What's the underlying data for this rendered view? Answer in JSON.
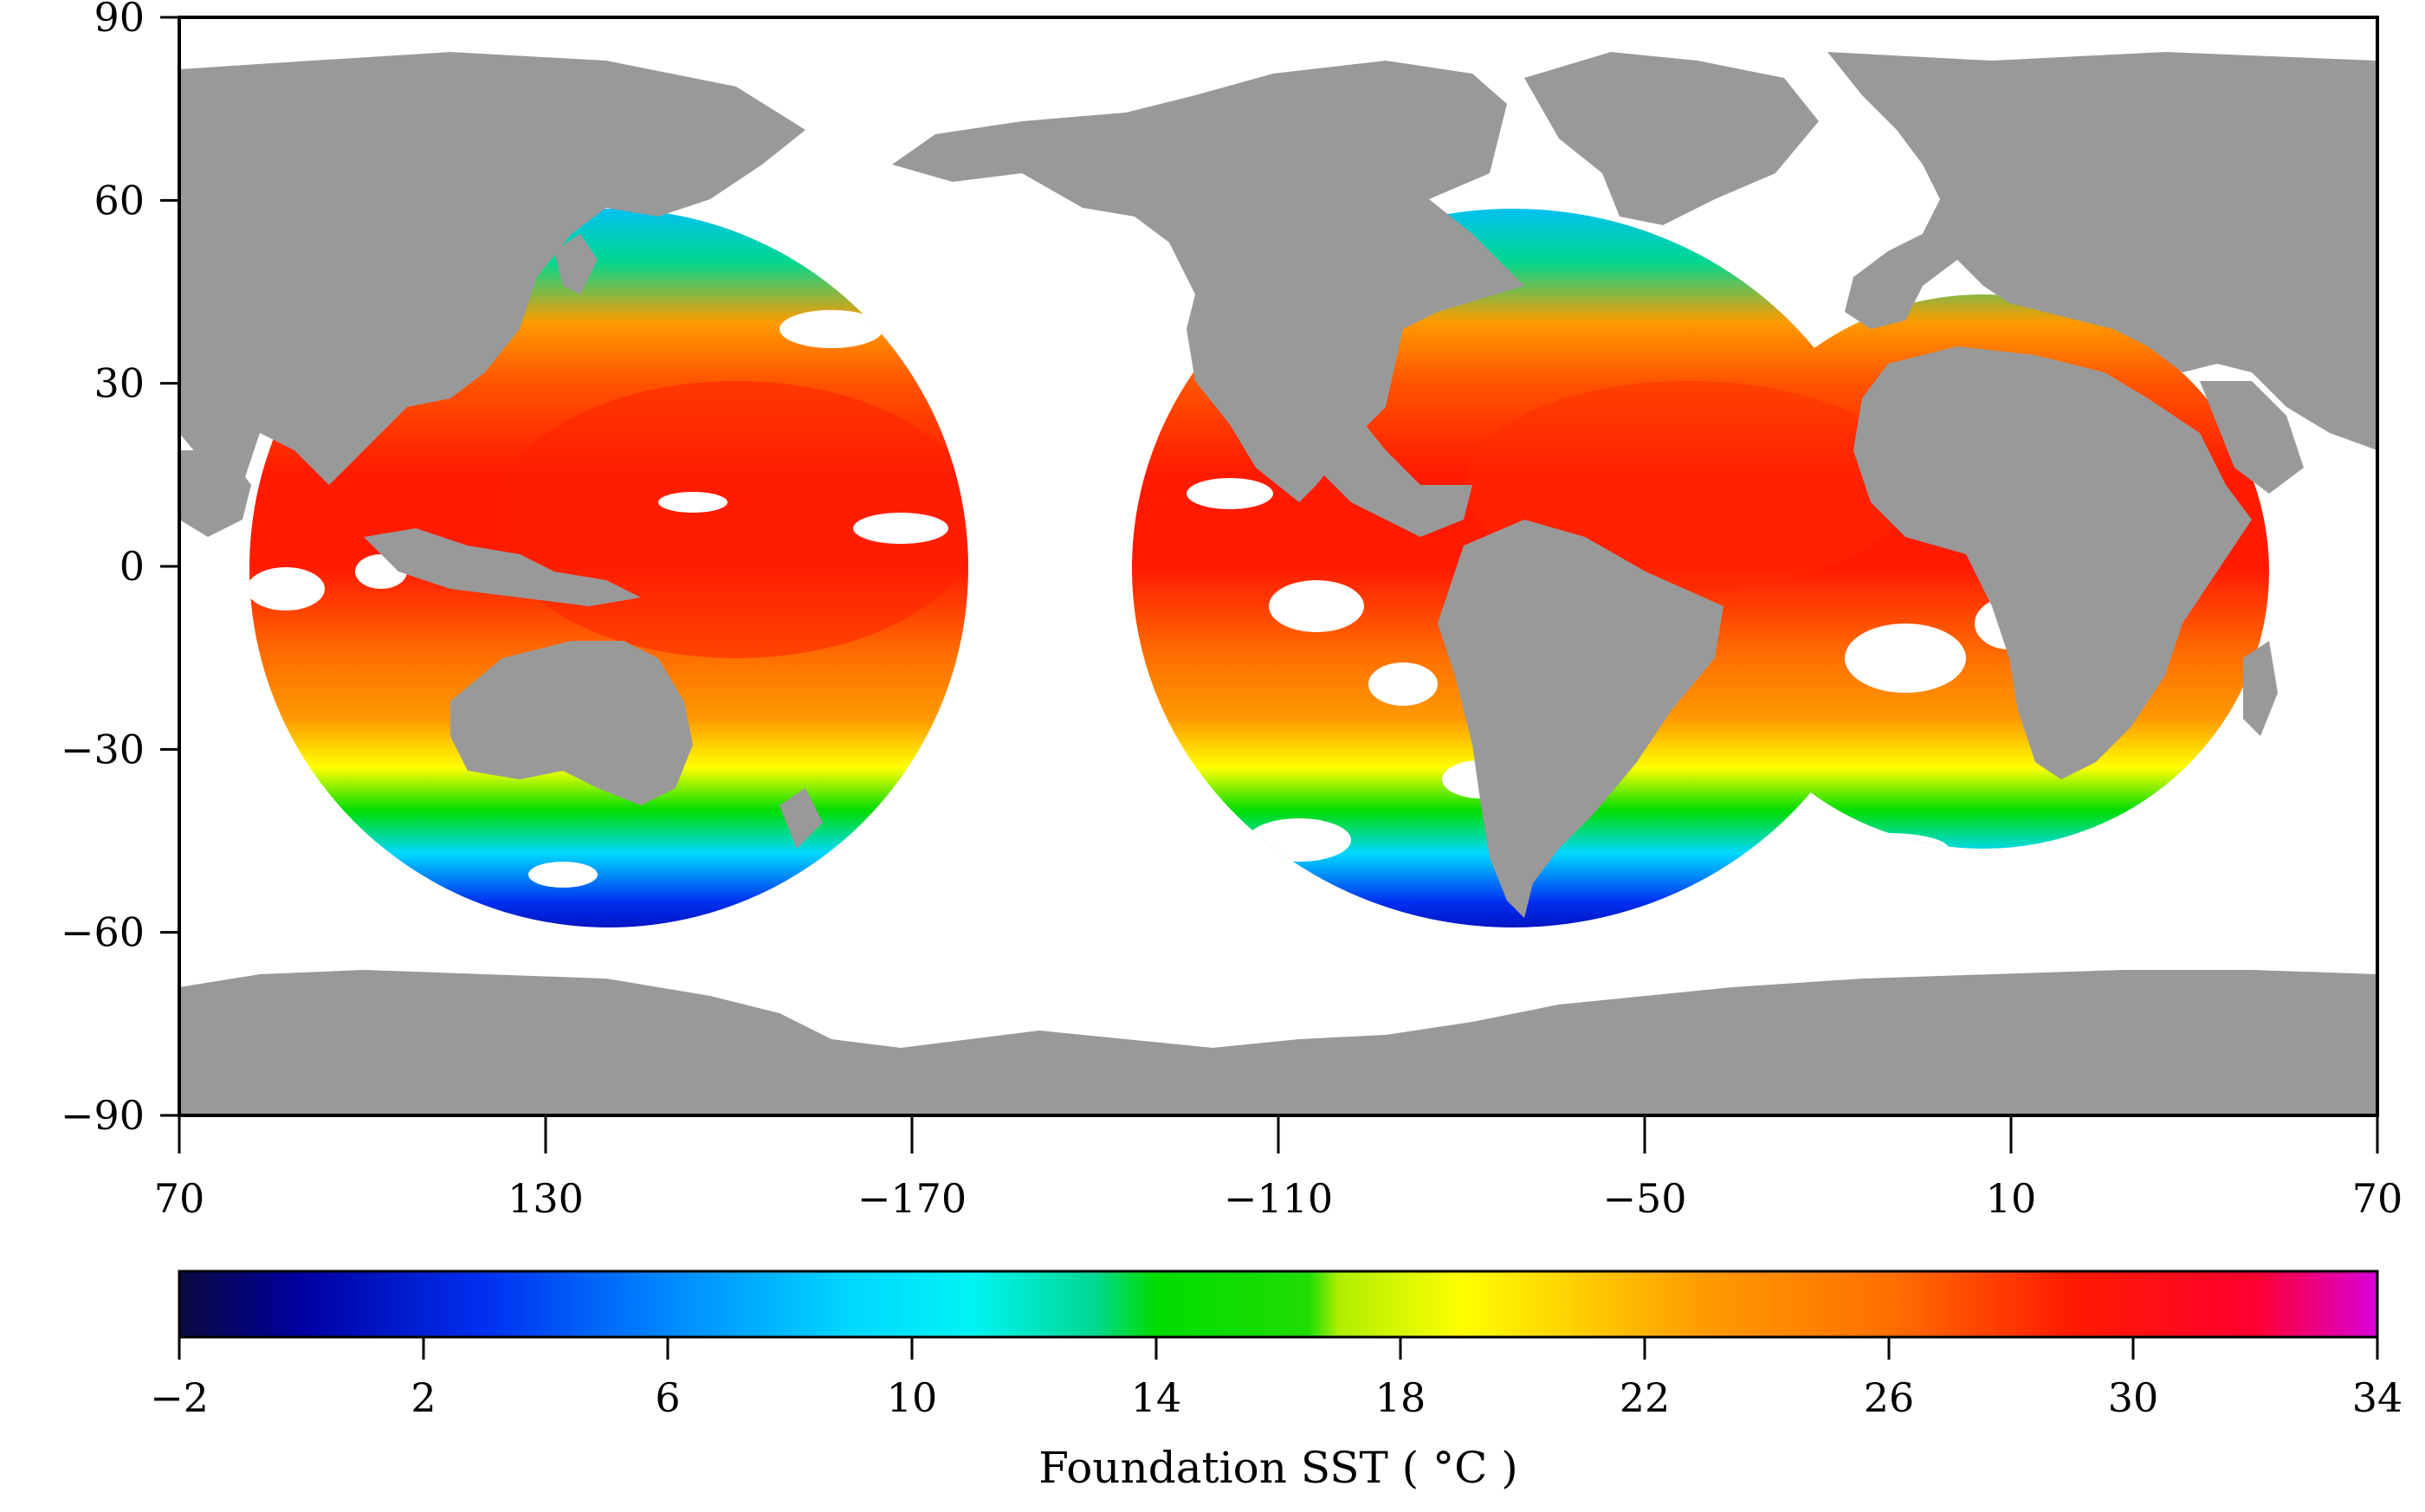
{
  "chart_data": {
    "type": "heatmap",
    "projection": "equirectangular",
    "x_axis": {
      "label": "",
      "range": [
        70,
        430
      ],
      "ticks": [
        70,
        130,
        190,
        250,
        310,
        370,
        430
      ],
      "tick_labels": [
        "70",
        "130",
        "−170",
        "−110",
        "−50",
        "10",
        "70"
      ]
    },
    "y_axis": {
      "label": "",
      "range": [
        -90,
        90
      ],
      "ticks": [
        -90,
        -60,
        -30,
        0,
        30,
        60,
        90
      ],
      "tick_labels": [
        "−90",
        "−60",
        "−30",
        "0",
        "30",
        "60",
        "90"
      ]
    },
    "colorbar": {
      "title": "Foundation SST ( °C )",
      "range": [
        -2,
        34
      ],
      "ticks": [
        -2,
        2,
        6,
        10,
        14,
        18,
        22,
        26,
        30,
        34
      ],
      "tick_labels": [
        "−2",
        "2",
        "6",
        "10",
        "14",
        "18",
        "22",
        "26",
        "30",
        "34"
      ],
      "colors": [
        {
          "v": -2,
          "c": "#0a0a40"
        },
        {
          "v": 0,
          "c": "#0000a0"
        },
        {
          "v": 3,
          "c": "#0030f0"
        },
        {
          "v": 6,
          "c": "#0088ff"
        },
        {
          "v": 9,
          "c": "#00d8ff"
        },
        {
          "v": 11,
          "c": "#00f4f4"
        },
        {
          "v": 13,
          "c": "#00d890"
        },
        {
          "v": 14,
          "c": "#00dd00"
        },
        {
          "v": 16.5,
          "c": "#20dd00"
        },
        {
          "v": 17,
          "c": "#b0ee00"
        },
        {
          "v": 19,
          "c": "#ffff00"
        },
        {
          "v": 21,
          "c": "#ffcc00"
        },
        {
          "v": 23,
          "c": "#ff9a00"
        },
        {
          "v": 26,
          "c": "#ff7000"
        },
        {
          "v": 29,
          "c": "#ff1a00"
        },
        {
          "v": 32,
          "c": "#ff0030"
        },
        {
          "v": 34,
          "c": "#d800d8"
        }
      ]
    },
    "zonal_sst_profile": [
      {
        "lat": 60,
        "sst": 8
      },
      {
        "lat": 50,
        "sst": 13
      },
      {
        "lat": 40,
        "sst": 23
      },
      {
        "lat": 30,
        "sst": 27
      },
      {
        "lat": 15,
        "sst": 29
      },
      {
        "lat": 0,
        "sst": 29
      },
      {
        "lat": -15,
        "sst": 26
      },
      {
        "lat": -25,
        "sst": 23
      },
      {
        "lat": -33,
        "sst": 19
      },
      {
        "lat": -40,
        "sst": 14
      },
      {
        "lat": -47,
        "sst": 9
      },
      {
        "lat": -55,
        "sst": 3
      },
      {
        "lat": -60,
        "sst": 1
      }
    ],
    "land_color": "#999999",
    "no_data_color": "#ffffff"
  }
}
